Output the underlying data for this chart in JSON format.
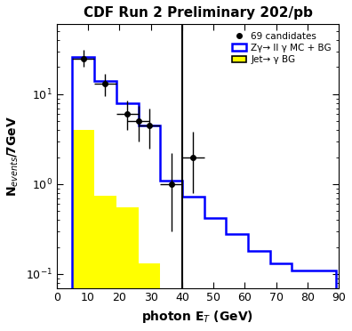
{
  "title": "CDF Run 2 Preliminary 202/pb",
  "xlabel": "photon E$_{T}$ (GeV)",
  "ylabel": "N$_{events}$/7GeV",
  "xlim": [
    0,
    90
  ],
  "ylim": [
    0.07,
    60
  ],
  "bin_edges": [
    5,
    12,
    19,
    26,
    33,
    40,
    47,
    54,
    61,
    68,
    75,
    82,
    89
  ],
  "blue_hist_values": [
    26.0,
    14.0,
    8.0,
    4.5,
    1.1,
    0.72,
    0.42,
    0.28,
    0.18,
    0.13,
    0.11,
    0.11
  ],
  "yellow_hist_values": [
    4.0,
    0.75,
    0.55,
    0.13,
    0.05,
    0.0,
    0.0,
    0.0,
    0.0,
    0.0,
    0.0,
    0.0
  ],
  "data_x": [
    8.5,
    15.5,
    22.5,
    26.0,
    29.5,
    36.5,
    43.5
  ],
  "data_y": [
    25.0,
    13.0,
    6.0,
    5.0,
    4.5,
    1.0,
    2.0
  ],
  "data_xerr": [
    3.5,
    3.5,
    3.5,
    3.5,
    3.5,
    3.5,
    3.5
  ],
  "data_yerr_lo": [
    5.0,
    3.5,
    2.0,
    2.0,
    2.0,
    0.7,
    1.2
  ],
  "data_yerr_hi": [
    6.0,
    4.0,
    2.5,
    2.5,
    2.5,
    1.2,
    1.8
  ],
  "vline_x": 40,
  "blue_color": "#0000FF",
  "yellow_color": "#FFFF00",
  "black_color": "#000000",
  "background_color": "#FFFFFF",
  "title_fontsize": 11,
  "label_fontsize": 10,
  "tick_fontsize": 9,
  "legend_label_data": "69 candidates",
  "legend_label_blue": "Zγ→ ll γ MC + BG",
  "legend_label_yellow": "Jet→ γ BG"
}
